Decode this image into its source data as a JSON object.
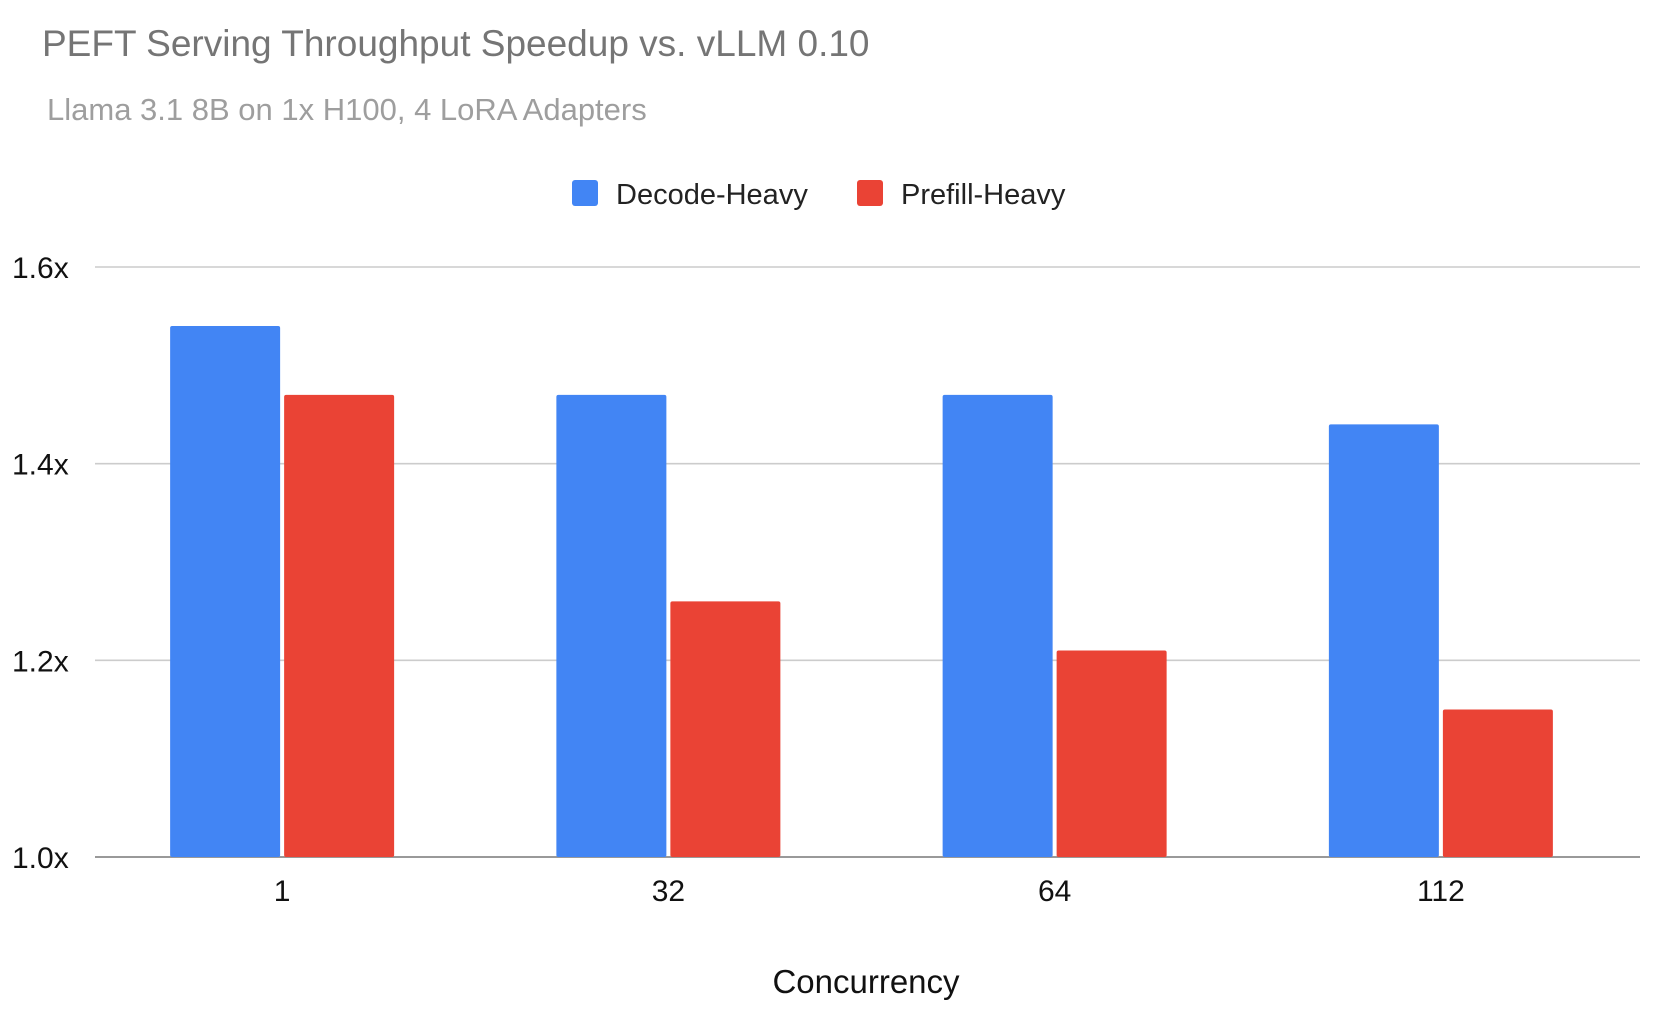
{
  "chart_data": {
    "type": "bar",
    "title": "PEFT Serving Throughput Speedup vs. vLLM 0.10",
    "subtitle": "Llama 3.1 8B on 1x H100, 4 LoRA Adapters",
    "xlabel": "Concurrency",
    "ylabel": "",
    "categories": [
      "1",
      "32",
      "64",
      "112"
    ],
    "series": [
      {
        "name": "Decode-Heavy",
        "color": "#4285f4",
        "values": [
          1.54,
          1.47,
          1.47,
          1.44
        ]
      },
      {
        "name": "Prefill-Heavy",
        "color": "#ea4335",
        "values": [
          1.47,
          1.26,
          1.21,
          1.15
        ]
      }
    ],
    "ylim": [
      1.0,
      1.6
    ],
    "yticks": [
      {
        "value": 1.0,
        "label": "1.0x"
      },
      {
        "value": 1.2,
        "label": "1.2x"
      },
      {
        "value": 1.4,
        "label": "1.4x"
      },
      {
        "value": 1.6,
        "label": "1.6x"
      }
    ],
    "grid": true,
    "legend": "top-center",
    "colors": {
      "title": "#757575",
      "subtitle": "#9e9e9e",
      "grid": "#cccccc",
      "baseline": "#999999"
    }
  }
}
